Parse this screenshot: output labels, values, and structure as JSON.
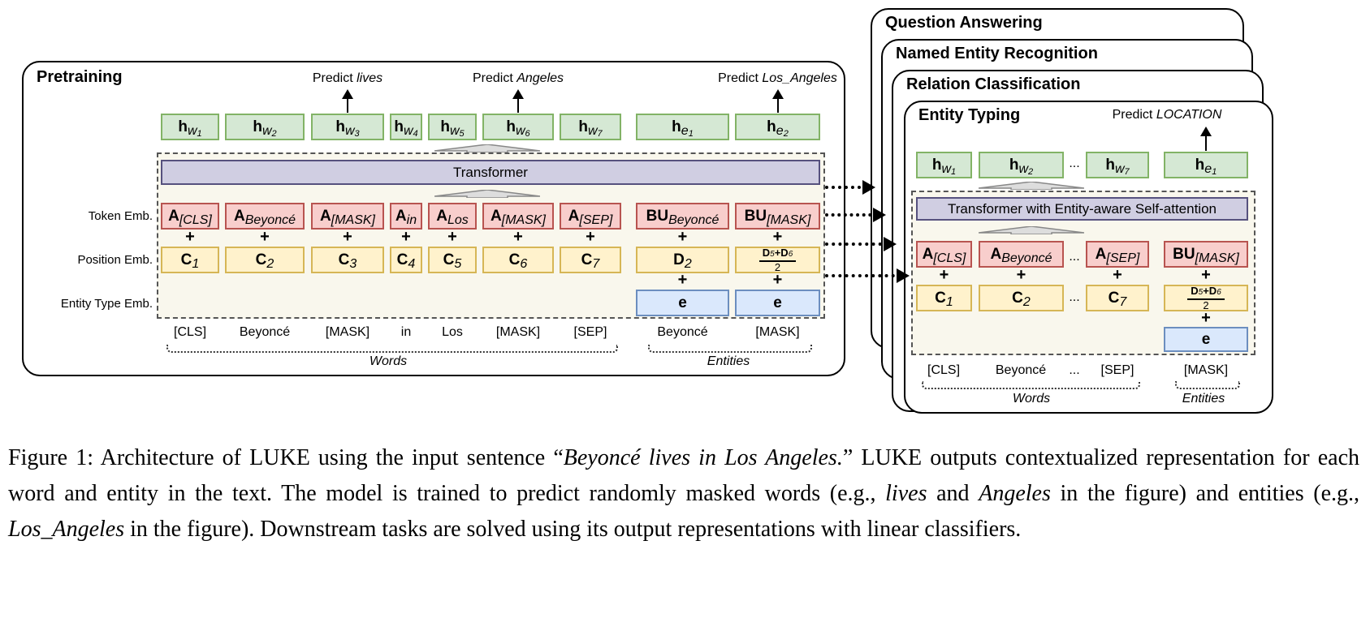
{
  "pretraining": {
    "title": "Pretraining",
    "predictions": [
      {
        "text": "Predict ",
        "target": "lives"
      },
      {
        "text": "Predict ",
        "target": "Angeles"
      },
      {
        "text": "Predict ",
        "target": "Los_Angeles"
      }
    ],
    "h_row": [
      {
        "main": "h",
        "sub": "w",
        "idx": "1"
      },
      {
        "main": "h",
        "sub": "w",
        "idx": "2"
      },
      {
        "main": "h",
        "sub": "w",
        "idx": "3"
      },
      {
        "main": "h",
        "sub": "w",
        "idx": "4"
      },
      {
        "main": "h",
        "sub": "w",
        "idx": "5"
      },
      {
        "main": "h",
        "sub": "w",
        "idx": "6"
      },
      {
        "main": "h",
        "sub": "w",
        "idx": "7"
      },
      {
        "main": "h",
        "sub": "e",
        "idx": "1"
      },
      {
        "main": "h",
        "sub": "e",
        "idx": "2"
      }
    ],
    "transformer": "Transformer",
    "row_labels": [
      "Token Emb.",
      "Position Emb.",
      "Entity Type Emb."
    ],
    "token_row": [
      {
        "main": "A",
        "sub": "[CLS]"
      },
      {
        "main": "A",
        "sub": "Beyoncé"
      },
      {
        "main": "A",
        "sub": "[MASK]"
      },
      {
        "main": "A",
        "sub": "in"
      },
      {
        "main": "A",
        "sub": "Los"
      },
      {
        "main": "A",
        "sub": "[MASK]"
      },
      {
        "main": "A",
        "sub": "[SEP]"
      },
      {
        "main": "BU",
        "sub": "Beyoncé"
      },
      {
        "main": "BU",
        "sub": "[MASK]"
      }
    ],
    "position_row": [
      {
        "main": "C",
        "sub": "1"
      },
      {
        "main": "C",
        "sub": "2"
      },
      {
        "main": "C",
        "sub": "3"
      },
      {
        "main": "C",
        "sub": "4"
      },
      {
        "main": "C",
        "sub": "5"
      },
      {
        "main": "C",
        "sub": "6"
      },
      {
        "main": "C",
        "sub": "7"
      },
      {
        "main": "D",
        "sub": "2"
      }
    ],
    "position_fraction": {
      "a": "D",
      "a_sub": "5",
      "op": "+",
      "b": "D",
      "b_sub": "6",
      "den": "2"
    },
    "entity_type_row": [
      "e",
      "e"
    ],
    "plus": "+",
    "words": [
      "[CLS]",
      "Beyoncé",
      "[MASK]",
      "in",
      "Los",
      "[MASK]",
      "[SEP]",
      "Beyoncé",
      "[MASK]"
    ],
    "group_words": "Words",
    "group_entities": "Entities"
  },
  "tasks": [
    "Question Answering",
    "Named Entity Recognition",
    "Relation Classification",
    "Entity Typing"
  ],
  "entity_typing": {
    "prediction": {
      "text": "Predict ",
      "target": "LOCATION"
    },
    "h_row": [
      {
        "main": "h",
        "sub": "w",
        "idx": "1"
      },
      {
        "main": "h",
        "sub": "w",
        "idx": "2"
      },
      {
        "main": "h",
        "sub": "w",
        "idx": "7"
      },
      {
        "main": "h",
        "sub": "e",
        "idx": "1"
      }
    ],
    "transformer": "Transformer with Entity-aware Self-attention",
    "token_row": [
      {
        "main": "A",
        "sub": "[CLS]"
      },
      {
        "main": "A",
        "sub": "Beyoncé"
      },
      {
        "main": "A",
        "sub": "[SEP]"
      },
      {
        "main": "BU",
        "sub": "[MASK]"
      }
    ],
    "position_row": [
      {
        "main": "C",
        "sub": "1"
      },
      {
        "main": "C",
        "sub": "2"
      },
      {
        "main": "C",
        "sub": "7"
      }
    ],
    "position_fraction": {
      "a": "D",
      "a_sub": "5",
      "op": "+",
      "b": "D",
      "b_sub": "6",
      "den": "2"
    },
    "entity_type": "e",
    "ellipsis": "...",
    "words": [
      "[CLS]",
      "Beyoncé",
      "[SEP]",
      "[MASK]"
    ],
    "group_words": "Words",
    "group_entities": "Entities"
  },
  "colors": {
    "hidden": "#d5e8d4",
    "token": "#f8cecc",
    "position": "#fff2cc",
    "entity_type": "#dae8fc",
    "transformer": "#d0cee2"
  },
  "caption": [
    {
      "t": "Figure 1: Architecture of LUKE using the input sentence “",
      "i": false
    },
    {
      "t": "Beyoncé lives in Los Angeles.",
      "i": true
    },
    {
      "t": "” LUKE outputs contextualized representation for each word and entity in the text. The model is trained to predict randomly masked words (e.g., ",
      "i": false
    },
    {
      "t": "lives",
      "i": true
    },
    {
      "t": " and ",
      "i": false
    },
    {
      "t": "Angeles",
      "i": true
    },
    {
      "t": " in the figure) and entities (e.g., ",
      "i": false
    },
    {
      "t": "Los_Angeles",
      "i": true
    },
    {
      "t": " in the figure). Downstream tasks are solved using its output representations with linear classifiers.",
      "i": false
    }
  ]
}
